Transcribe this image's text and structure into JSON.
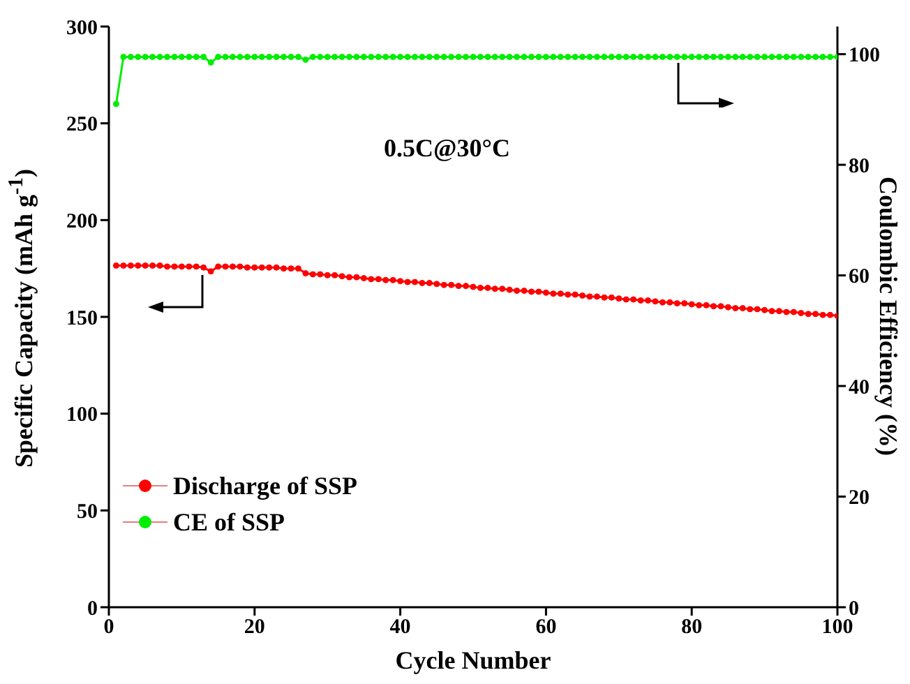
{
  "chart_data": {
    "type": "line",
    "xlabel": "Cycle Number",
    "ylabel": "Specific Capacity (mAh g$^{-1}$)",
    "y2label": "Coulombic Efficiency (%)",
    "x": [
      1,
      2,
      3,
      4,
      5,
      6,
      7,
      8,
      9,
      10,
      11,
      12,
      13,
      14,
      15,
      16,
      17,
      18,
      19,
      20,
      21,
      22,
      23,
      24,
      25,
      26,
      27,
      28,
      29,
      30,
      31,
      32,
      33,
      34,
      35,
      36,
      37,
      38,
      39,
      40,
      41,
      42,
      43,
      44,
      45,
      46,
      47,
      48,
      49,
      50,
      51,
      52,
      53,
      54,
      55,
      56,
      57,
      58,
      59,
      60,
      61,
      62,
      63,
      64,
      65,
      66,
      67,
      68,
      69,
      70,
      71,
      72,
      73,
      74,
      75,
      76,
      77,
      78,
      79,
      80,
      81,
      82,
      83,
      84,
      85,
      86,
      87,
      88,
      89,
      90,
      91,
      92,
      93,
      94,
      95,
      96,
      97,
      98,
      99,
      100
    ],
    "series": [
      {
        "name": "Discharge  of SSP",
        "color": "#ff0000",
        "values": [
          176.5,
          176.5,
          176.5,
          176.5,
          176.5,
          176.5,
          176.5,
          176,
          176,
          176,
          176,
          176,
          175.5,
          173.5,
          176,
          176,
          176,
          176,
          175.5,
          175.5,
          175.5,
          175.5,
          175.5,
          175,
          175,
          175,
          172.5,
          172,
          172,
          171.5,
          171.5,
          171,
          170.5,
          170.5,
          170,
          169.5,
          169.5,
          169,
          169,
          168.5,
          168,
          168,
          167.5,
          167.5,
          167,
          166.5,
          166.5,
          166,
          166,
          165.5,
          165,
          165,
          164.5,
          164.5,
          164,
          163.5,
          163.5,
          163,
          163,
          162.5,
          162,
          162,
          161.5,
          161.5,
          161,
          160.5,
          160.5,
          160,
          160,
          159.5,
          159,
          159,
          158.5,
          158.5,
          158,
          157.5,
          157.5,
          157,
          157,
          156.5,
          156,
          156,
          155.5,
          155.5,
          155,
          154.5,
          154.5,
          154,
          154,
          153.5,
          153,
          153,
          152.5,
          152.5,
          152,
          151.5,
          151.5,
          151,
          151,
          150.5
        ]
      },
      {
        "name": "CE of SSP",
        "color": "#00ee00",
        "axis": "y2",
        "values": [
          91,
          99.5,
          99.5,
          99.5,
          99.5,
          99.5,
          99.5,
          99.5,
          99.5,
          99.5,
          99.5,
          99.5,
          99.5,
          98.5,
          99.5,
          99.5,
          99.5,
          99.5,
          99.5,
          99.5,
          99.5,
          99.5,
          99.5,
          99.5,
          99.5,
          99.5,
          99,
          99.5,
          99.5,
          99.5,
          99.5,
          99.5,
          99.5,
          99.5,
          99.5,
          99.5,
          99.5,
          99.5,
          99.5,
          99.5,
          99.5,
          99.5,
          99.5,
          99.5,
          99.5,
          99.5,
          99.5,
          99.5,
          99.5,
          99.5,
          99.5,
          99.5,
          99.5,
          99.5,
          99.5,
          99.5,
          99.5,
          99.5,
          99.5,
          99.5,
          99.5,
          99.5,
          99.5,
          99.5,
          99.5,
          99.5,
          99.5,
          99.5,
          99.5,
          99.5,
          99.5,
          99.5,
          99.5,
          99.5,
          99.5,
          99.5,
          99.5,
          99.5,
          99.5,
          99.5,
          99.5,
          99.5,
          99.5,
          99.5,
          99.5,
          99.5,
          99.5,
          99.5,
          99.5,
          99.5,
          99.5,
          99.5,
          99.5,
          99.5,
          99.5,
          99.5,
          99.5,
          99.5,
          99.5,
          99.5
        ]
      }
    ],
    "xlim": [
      0,
      100
    ],
    "xticks": [
      0,
      20,
      40,
      60,
      80,
      100
    ],
    "ylim": [
      0,
      300
    ],
    "yticks": [
      0,
      50,
      100,
      150,
      200,
      250,
      300
    ],
    "y2lim": [
      0,
      105
    ],
    "y2ticks": [
      0,
      20,
      40,
      60,
      80,
      100
    ],
    "annotations": [
      "0.5C@30°C"
    ],
    "legend": "left",
    "marker": "circle",
    "line_style": "solid",
    "grid": false
  }
}
